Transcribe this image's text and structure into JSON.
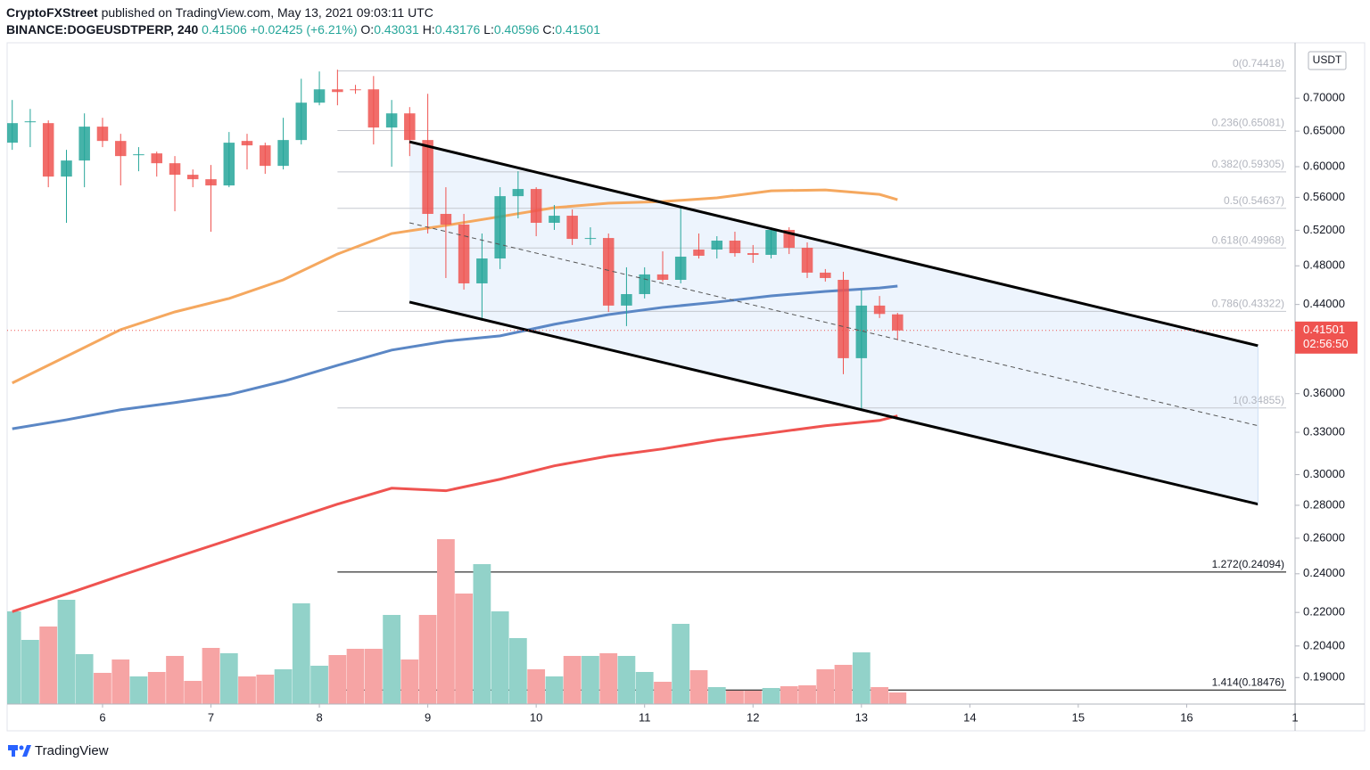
{
  "header": {
    "publisher": "CryptoFXStreet",
    "published": "published on TradingView.com, May 13, 2021 09:03:11 UTC"
  },
  "legend": {
    "symbol": "BINANCE:DOGEUSDTPERP, 240",
    "price": "0.41506",
    "change": "+0.02425 (+6.21%)",
    "ohlc": [
      {
        "key": "O:",
        "value": "0.43031"
      },
      {
        "key": "H:",
        "value": "0.43176"
      },
      {
        "key": "L:",
        "value": "0.40596"
      },
      {
        "key": "C:",
        "value": "0.41501"
      }
    ]
  },
  "currency": "USDT",
  "countdown": "02:56:50",
  "footer": "TradingView",
  "chart_data": {
    "type": "candlestick",
    "log": true,
    "xlim": [
      5.12,
      17.0
    ],
    "xticks": [
      6,
      7,
      8,
      9,
      10,
      11,
      12,
      13,
      14,
      15,
      16,
      {
        "value": 17,
        "label": "1"
      }
    ],
    "ylim": [
      0.179,
      0.793
    ],
    "yticks": [
      {
        "value": 0.7,
        "label": "0.70000"
      },
      {
        "value": 0.65,
        "label": "0.65000"
      },
      {
        "value": 0.6,
        "label": "0.60000"
      },
      {
        "value": 0.56,
        "label": "0.56000"
      },
      {
        "value": 0.52,
        "label": "0.52000"
      },
      {
        "value": 0.48,
        "label": "0.48000"
      },
      {
        "value": 0.44,
        "label": "0.44000"
      },
      {
        "value": 0.36,
        "label": "0.36000"
      },
      {
        "value": 0.33,
        "label": "0.33000"
      },
      {
        "value": 0.3,
        "label": "0.30000"
      },
      {
        "value": 0.28,
        "label": "0.28000"
      },
      {
        "value": 0.26,
        "label": "0.26000"
      },
      {
        "value": 0.24,
        "label": "0.24000"
      },
      {
        "value": 0.22,
        "label": "0.22000"
      },
      {
        "value": 0.204,
        "label": "0.20400"
      },
      {
        "value": 0.19,
        "label": "0.19000"
      }
    ],
    "up_color": "#26a69a",
    "down_color": "#ef5350",
    "volume_up_color": "#92d2c9",
    "volume_down_color": "#f6a4a4",
    "x": [
      5.167,
      5.333,
      5.5,
      5.667,
      5.833,
      6,
      6.167,
      6.333,
      6.5,
      6.667,
      6.833,
      7,
      7.167,
      7.333,
      7.5,
      7.667,
      7.833,
      8,
      8.167,
      8.333,
      8.5,
      8.667,
      8.833,
      9,
      9.167,
      9.333,
      9.5,
      9.667,
      9.833,
      10,
      10.167,
      10.333,
      10.5,
      10.667,
      10.833,
      11,
      11.167,
      11.333,
      11.5,
      11.667,
      11.833,
      12,
      12.167,
      12.333,
      12.5,
      12.667,
      12.833,
      13,
      13.167,
      13.333
    ],
    "open": [
      0.6333,
      0.6631,
      0.6618,
      0.5868,
      0.6084,
      0.6566,
      0.6358,
      0.6157,
      0.6182,
      0.6047,
      0.5892,
      0.5833,
      0.5752,
      0.6358,
      0.6295,
      0.6011,
      0.6371,
      0.693,
      0.7141,
      0.7141,
      0.7141,
      0.6553,
      0.6765,
      0.6371,
      0.5395,
      0.5267,
      0.4614,
      0.488,
      0.5615,
      0.5706,
      0.5288,
      0.5373,
      0.51,
      0.511,
      0.4389,
      0.4504,
      0.4708,
      0.4651,
      0.4979,
      0.4979,
      0.508,
      0.4939,
      0.492,
      0.5204,
      0.4999,
      0.4727,
      0.4651,
      0.3899,
      0.4389,
      0.43031
    ],
    "high": [
      0.6972,
      0.6833,
      0.6659,
      0.6232,
      0.6765,
      0.6698,
      0.6461,
      0.627,
      0.6207,
      0.6145,
      0.5963,
      0.6023,
      0.6487,
      0.6461,
      0.6333,
      0.6698,
      0.7313,
      0.7434,
      0.7464,
      0.7213,
      0.7358,
      0.6972,
      0.6861,
      0.707,
      0.5729,
      0.5395,
      0.5162,
      0.5729,
      0.5939,
      0.5729,
      0.5504,
      0.5449,
      0.5235,
      0.5162,
      0.4784,
      0.4784,
      0.4959,
      0.5482,
      0.5162,
      0.5131,
      0.5183,
      0.503,
      0.5235,
      0.5235,
      0.506,
      0.4765,
      0.4736,
      0.455,
      0.4485,
      0.43176
    ],
    "low": [
      0.6232,
      0.627,
      0.5729,
      0.5288,
      0.5729,
      0.627,
      0.5752,
      0.5939,
      0.5868,
      0.5427,
      0.5729,
      0.5183,
      0.5729,
      0.5963,
      0.5904,
      0.5963,
      0.6308,
      0.6889,
      0.6889,
      0.707,
      0.6308,
      0.5999,
      0.6145,
      0.5162,
      0.467,
      0.455,
      0.4242,
      0.4765,
      0.5341,
      0.5131,
      0.5204,
      0.503,
      0.503,
      0.4327,
      0.4191,
      0.446,
      0.4633,
      0.4614,
      0.488,
      0.488,
      0.49,
      0.4832,
      0.488,
      0.4929,
      0.467,
      0.4633,
      0.3761,
      0.3472,
      0.4268,
      0.40596
    ],
    "close": [
      0.6618,
      0.6645,
      0.5868,
      0.6084,
      0.6566,
      0.6358,
      0.6145,
      0.617,
      0.6047,
      0.5892,
      0.5833,
      0.5752,
      0.6333,
      0.6295,
      0.6011,
      0.6371,
      0.693,
      0.7141,
      0.7098,
      0.7127,
      0.6553,
      0.6765,
      0.6371,
      0.5395,
      0.5267,
      0.4614,
      0.488,
      0.5615,
      0.5706,
      0.5288,
      0.5373,
      0.51,
      0.511,
      0.4389,
      0.4504,
      0.4708,
      0.4651,
      0.49,
      0.491,
      0.508,
      0.4939,
      0.492,
      0.5204,
      0.4999,
      0.4727,
      0.467,
      0.3899,
      0.4389,
      0.4307,
      0.41501
    ],
    "volume": [
      104,
      72,
      87,
      117,
      56,
      35,
      50,
      31,
      36,
      54,
      26,
      63,
      57,
      31,
      33,
      39,
      113,
      43,
      55,
      62,
      62,
      100,
      50,
      100,
      185,
      124,
      157,
      104,
      74,
      39,
      31,
      54,
      54,
      57,
      54,
      36,
      25,
      90,
      38,
      19,
      15,
      15,
      18,
      20,
      21,
      39,
      44,
      58,
      19,
      13
    ],
    "moving_averages": [
      {
        "color": "#f5a85f",
        "x": [
          5.167,
          5.667,
          6.167,
          6.667,
          7.167,
          7.667,
          8.167,
          8.667,
          9.167,
          9.667,
          10.167,
          10.667,
          11.167,
          11.667,
          12.167,
          12.667,
          13.167,
          13.333
        ],
        "values": [
          0.3687,
          0.3915,
          0.4158,
          0.4327,
          0.446,
          0.4651,
          0.4929,
          0.5162,
          0.5257,
          0.5362,
          0.5471,
          0.5526,
          0.5548,
          0.5593,
          0.5683,
          0.5694,
          0.5637,
          0.5571
        ]
      },
      {
        "color": "#5b87c5",
        "x": [
          5.167,
          5.667,
          6.167,
          6.667,
          7.167,
          7.667,
          8.167,
          8.667,
          9.167,
          9.667,
          10.167,
          10.667,
          11.167,
          11.667,
          12.167,
          12.667,
          13.167,
          13.333
        ],
        "values": [
          0.3326,
          0.3394,
          0.3472,
          0.3528,
          0.3592,
          0.3701,
          0.3837,
          0.3971,
          0.4051,
          0.41,
          0.4208,
          0.4301,
          0.4371,
          0.4424,
          0.4486,
          0.4531,
          0.4567,
          0.4586
        ]
      },
      {
        "color": "#ef5350",
        "x": [
          5.167,
          5.667,
          6.167,
          6.667,
          7.167,
          7.667,
          8.167,
          8.667,
          9.167,
          9.667,
          10.167,
          10.667,
          11.167,
          11.667,
          12.167,
          12.667,
          13.167,
          13.333
        ],
        "values": [
          0.2204,
          0.2293,
          0.239,
          0.2489,
          0.259,
          0.2697,
          0.2807,
          0.291,
          0.2893,
          0.2969,
          0.306,
          0.3128,
          0.3179,
          0.3243,
          0.3295,
          0.3349,
          0.3389,
          0.3424
        ]
      }
    ],
    "channel": {
      "x": [
        8.831,
        16.658
      ],
      "upper": [
        0.6346,
        0.401
      ],
      "middle": [
        0.5288,
        0.3349
      ],
      "lower": [
        0.4424,
        0.2807
      ],
      "color": "#000000",
      "fill": "#e8f1fc"
    },
    "fib_from": 8.167,
    "fib_levels": [
      {
        "value": 0.74418,
        "label": "0(0.74418)",
        "color": "#c5c8cf"
      },
      {
        "value": 0.65081,
        "label": "0.236(0.65081)",
        "color": "#c5c8cf"
      },
      {
        "value": 0.59305,
        "label": "0.382(0.59305)",
        "color": "#c5c8cf"
      },
      {
        "value": 0.54637,
        "label": "0.5(0.54637)",
        "color": "#c5c8cf"
      },
      {
        "value": 0.49968,
        "label": "0.618(0.49968)",
        "color": "#c5c8cf"
      },
      {
        "value": 0.43322,
        "label": "0.786(0.43322)",
        "color": "#c5c8cf"
      },
      {
        "value": 0.34855,
        "label": "1(0.34855)",
        "color": "#c5c8cf"
      },
      {
        "value": 0.24094,
        "label": "1.272(0.24094)",
        "color": "#000000"
      },
      {
        "value": 0.18476,
        "label": "1.414(0.18476)",
        "color": "#000000"
      }
    ],
    "last_price": {
      "value": 0.41501,
      "label": "0.41501",
      "color": "#ef5350"
    }
  }
}
